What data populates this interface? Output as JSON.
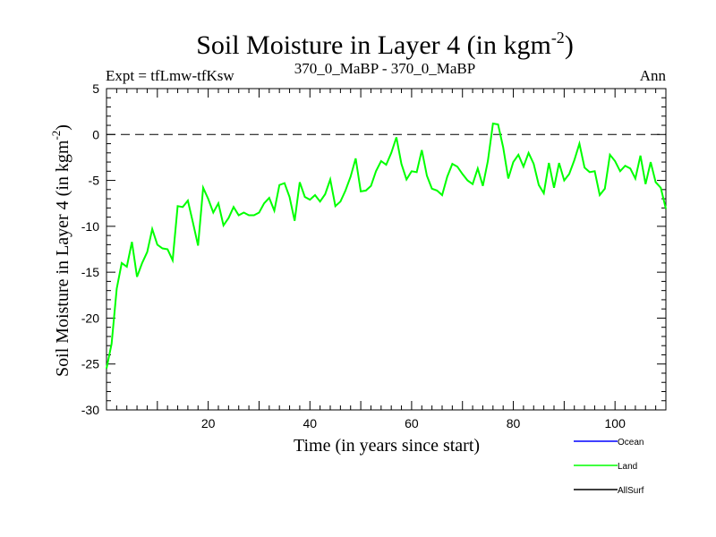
{
  "chart_data": {
    "type": "line",
    "title": "Soil Moisture in Layer 4 (in kgm",
    "title_sup": "-2",
    "title_end": ")",
    "subtitle_left": "Expt = tfLmw-tfKsw",
    "subtitle_center": "370_0_MaBP - 370_0_MaBP",
    "subtitle_right": "Ann",
    "xlabel": "Time (in years since start)",
    "ylabel": "Soil Moisture in Layer 4 (in kgm",
    "ylabel_sup": "-2",
    "ylabel_end": ")",
    "xlim": [
      0,
      110
    ],
    "ylim": [
      -30,
      5
    ],
    "x_ticks": [
      20,
      40,
      60,
      80,
      100
    ],
    "y_ticks": [
      5,
      0,
      -5,
      -10,
      -15,
      -20,
      -25,
      -30
    ],
    "zero_line": "dashed",
    "series": [
      {
        "name": "Ocean",
        "color": "#0000ff",
        "values": []
      },
      {
        "name": "Land",
        "color": "#00ff00",
        "x": [
          0,
          1,
          2,
          3,
          4,
          5,
          6,
          7,
          8,
          9,
          10,
          11,
          12,
          13,
          14,
          15,
          16,
          17,
          18,
          19,
          20,
          21,
          22,
          23,
          24,
          25,
          26,
          27,
          28,
          29,
          30,
          31,
          32,
          33,
          34,
          35,
          36,
          37,
          38,
          39,
          40,
          41,
          42,
          43,
          44,
          45,
          46,
          47,
          48,
          49,
          50,
          51,
          52,
          53,
          54,
          55,
          56,
          57,
          58,
          59,
          60,
          61,
          62,
          63,
          64,
          65,
          66,
          67,
          68,
          69,
          70,
          71,
          72,
          73,
          74,
          75,
          76,
          77,
          78,
          79,
          80,
          81,
          82,
          83,
          84,
          85,
          86,
          87,
          88,
          89,
          90,
          91,
          92,
          93,
          94,
          95,
          96,
          97,
          98,
          99,
          100,
          101,
          102,
          103,
          104,
          105,
          106,
          107,
          108,
          109,
          110
        ],
        "values": [
          -25.5,
          -22.8,
          -16.8,
          -14,
          -14.4,
          -11.7,
          -15.5,
          -14,
          -12.8,
          -10.3,
          -12,
          -12.4,
          -12.5,
          -13.7,
          -7.8,
          -7.9,
          -7.2,
          -9.6,
          -12.1,
          -5.8,
          -7,
          -8.5,
          -7.5,
          -9.9,
          -9.1,
          -7.9,
          -8.8,
          -8.5,
          -8.8,
          -8.8,
          -8.5,
          -7.5,
          -6.9,
          -8.3,
          -5.5,
          -5.3,
          -6.8,
          -9.4,
          -5.2,
          -6.8,
          -7.1,
          -6.6,
          -7.3,
          -6.5,
          -4.9,
          -7.8,
          -7.3,
          -6.1,
          -4.6,
          -2.6,
          -6.2,
          -6.1,
          -5.6,
          -4,
          -2.9,
          -3.3,
          -2,
          -0.3,
          -3.2,
          -4.9,
          -4,
          -4.1,
          -1.7,
          -4.5,
          -5.9,
          -6.1,
          -6.6,
          -4.6,
          -3.2,
          -3.5,
          -4.3,
          -5,
          -5.4,
          -3.7,
          -5.6,
          -2.9,
          1.2,
          1.1,
          -1.4,
          -4.8,
          -3,
          -2.2,
          -3.5,
          -2,
          -3.2,
          -5.5,
          -6.4,
          -3.1,
          -5.8,
          -3.1,
          -5,
          -4.3,
          -2.8,
          -1,
          -3.6,
          -4.1,
          -4,
          -6.6,
          -5.9,
          -2.2,
          -2.9,
          -4,
          -3.4,
          -3.7,
          -4.8,
          -2.3,
          -5.4,
          -3,
          -5.2,
          -5.8,
          -8.1
        ]
      },
      {
        "name": "AllSurf",
        "color": "#000000",
        "values": []
      }
    ],
    "legend_position": "bottom-right"
  }
}
